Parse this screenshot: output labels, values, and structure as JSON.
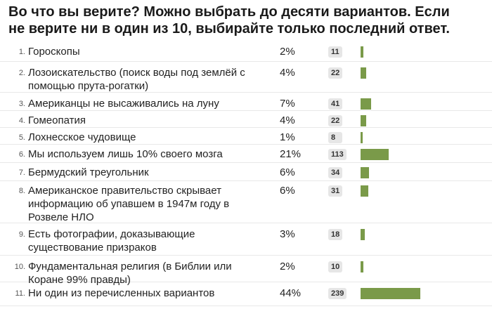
{
  "poll": {
    "title": "Во что вы верите? Можно выбрать до десяти вариантов. Если\nне верите ни в один из 10, выбирайте только последний ответ.",
    "bar_color": "#7a9a49",
    "options": [
      {
        "num": "1.",
        "label": "Гороскопы",
        "pct": "2%",
        "count": "11",
        "votes": 11
      },
      {
        "num": "2.",
        "label": "Лозоискательство (поиск воды под землёй с помощью прута-рогатки)",
        "pct": "4%",
        "count": "22",
        "votes": 22
      },
      {
        "num": "3.",
        "label": "Американцы не высаживались на луну",
        "pct": "7%",
        "count": "41",
        "votes": 41
      },
      {
        "num": "4.",
        "label": "Гомеопатия",
        "pct": "4%",
        "count": "22",
        "votes": 22
      },
      {
        "num": "5.",
        "label": "Лохнесское чудовище",
        "pct": "1%",
        "count": "8",
        "votes": 8
      },
      {
        "num": "6.",
        "label": "Мы используем лишь 10% своего мозга",
        "pct": "21%",
        "count": "113",
        "votes": 113
      },
      {
        "num": "7.",
        "label": "Бермудский треугольник",
        "pct": "6%",
        "count": "34",
        "votes": 34
      },
      {
        "num": "8.",
        "label": "Американское правительство скрывает информацию об упавшем в 1947м году в Розвеле НЛО",
        "pct": "6%",
        "count": "31",
        "votes": 31
      },
      {
        "num": "9.",
        "label": "Есть фотографии, доказывающие существование призраков",
        "pct": "3%",
        "count": "18",
        "votes": 18
      },
      {
        "num": "10.",
        "label": "Фундаментальная религия (в Библии или Коране 99% правды)",
        "pct": "2%",
        "count": "10",
        "votes": 10
      },
      {
        "num": "11.",
        "label": "Ни один из перечисленных вариантов",
        "pct": "44%",
        "count": "239",
        "votes": 239
      }
    ]
  }
}
